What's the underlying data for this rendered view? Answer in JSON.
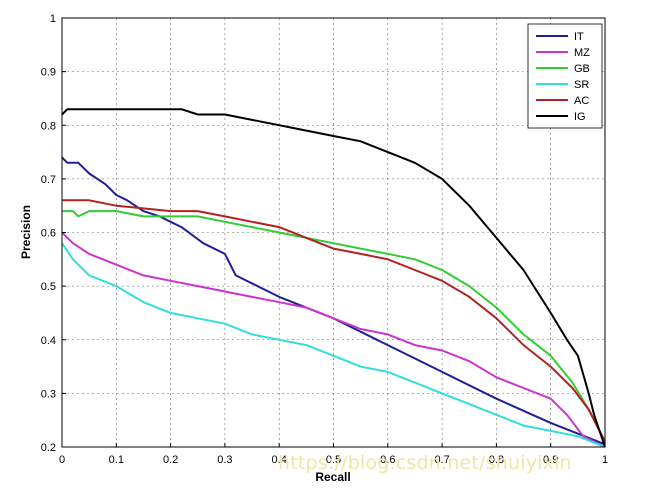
{
  "chart_data": {
    "type": "line",
    "title": "",
    "xlabel": "Recall",
    "ylabel": "Precision",
    "xlim": [
      0,
      1
    ],
    "ylim": [
      0.2,
      1
    ],
    "grid": true,
    "legend_position": "top-right",
    "x_ticks": [
      "0",
      "0.1",
      "0.2",
      "0.3",
      "0.4",
      "0.5",
      "0.6",
      "0.7",
      "0.8",
      "0.9",
      "1"
    ],
    "y_ticks": [
      "0.2",
      "0.3",
      "0.4",
      "0.5",
      "0.6",
      "0.7",
      "0.8",
      "0.9",
      "1"
    ],
    "series": [
      {
        "name": "IT",
        "color": "#1f1f99",
        "points": [
          [
            0,
            0.74
          ],
          [
            0.01,
            0.73
          ],
          [
            0.03,
            0.73
          ],
          [
            0.05,
            0.71
          ],
          [
            0.08,
            0.69
          ],
          [
            0.1,
            0.67
          ],
          [
            0.12,
            0.66
          ],
          [
            0.15,
            0.64
          ],
          [
            0.18,
            0.63
          ],
          [
            0.2,
            0.62
          ],
          [
            0.22,
            0.61
          ],
          [
            0.26,
            0.58
          ],
          [
            0.3,
            0.56
          ],
          [
            0.32,
            0.52
          ],
          [
            0.4,
            0.48
          ],
          [
            0.5,
            0.44
          ],
          [
            0.6,
            0.39
          ],
          [
            0.7,
            0.34
          ],
          [
            0.8,
            0.29
          ],
          [
            0.9,
            0.245
          ],
          [
            1,
            0.205
          ]
        ]
      },
      {
        "name": "MZ",
        "color": "#cc33cc",
        "points": [
          [
            0,
            0.6
          ],
          [
            0.02,
            0.58
          ],
          [
            0.05,
            0.56
          ],
          [
            0.1,
            0.54
          ],
          [
            0.15,
            0.52
          ],
          [
            0.2,
            0.51
          ],
          [
            0.25,
            0.5
          ],
          [
            0.3,
            0.49
          ],
          [
            0.35,
            0.48
          ],
          [
            0.4,
            0.47
          ],
          [
            0.45,
            0.46
          ],
          [
            0.5,
            0.44
          ],
          [
            0.55,
            0.42
          ],
          [
            0.6,
            0.41
          ],
          [
            0.65,
            0.39
          ],
          [
            0.7,
            0.38
          ],
          [
            0.75,
            0.36
          ],
          [
            0.8,
            0.33
          ],
          [
            0.85,
            0.31
          ],
          [
            0.9,
            0.29
          ],
          [
            0.93,
            0.26
          ],
          [
            0.96,
            0.22
          ],
          [
            1,
            0.2
          ]
        ]
      },
      {
        "name": "GB",
        "color": "#33cc33",
        "points": [
          [
            0,
            0.64
          ],
          [
            0.02,
            0.64
          ],
          [
            0.03,
            0.63
          ],
          [
            0.05,
            0.64
          ],
          [
            0.1,
            0.64
          ],
          [
            0.15,
            0.63
          ],
          [
            0.25,
            0.63
          ],
          [
            0.3,
            0.62
          ],
          [
            0.35,
            0.61
          ],
          [
            0.4,
            0.6
          ],
          [
            0.45,
            0.59
          ],
          [
            0.5,
            0.58
          ],
          [
            0.55,
            0.57
          ],
          [
            0.6,
            0.56
          ],
          [
            0.65,
            0.55
          ],
          [
            0.7,
            0.53
          ],
          [
            0.75,
            0.5
          ],
          [
            0.8,
            0.46
          ],
          [
            0.85,
            0.41
          ],
          [
            0.9,
            0.37
          ],
          [
            0.94,
            0.32
          ],
          [
            0.97,
            0.27
          ],
          [
            1,
            0.21
          ]
        ]
      },
      {
        "name": "SR",
        "color": "#33dddd",
        "points": [
          [
            0,
            0.58
          ],
          [
            0.02,
            0.55
          ],
          [
            0.05,
            0.52
          ],
          [
            0.1,
            0.5
          ],
          [
            0.15,
            0.47
          ],
          [
            0.2,
            0.45
          ],
          [
            0.25,
            0.44
          ],
          [
            0.3,
            0.43
          ],
          [
            0.35,
            0.41
          ],
          [
            0.4,
            0.4
          ],
          [
            0.45,
            0.39
          ],
          [
            0.5,
            0.37
          ],
          [
            0.55,
            0.35
          ],
          [
            0.6,
            0.34
          ],
          [
            0.65,
            0.32
          ],
          [
            0.7,
            0.3
          ],
          [
            0.75,
            0.28
          ],
          [
            0.8,
            0.26
          ],
          [
            0.85,
            0.24
          ],
          [
            0.9,
            0.23
          ],
          [
            0.95,
            0.22
          ],
          [
            1,
            0.2
          ]
        ]
      },
      {
        "name": "AC",
        "color": "#b22222",
        "points": [
          [
            0,
            0.66
          ],
          [
            0.05,
            0.66
          ],
          [
            0.1,
            0.65
          ],
          [
            0.2,
            0.64
          ],
          [
            0.25,
            0.64
          ],
          [
            0.3,
            0.63
          ],
          [
            0.35,
            0.62
          ],
          [
            0.4,
            0.61
          ],
          [
            0.45,
            0.59
          ],
          [
            0.5,
            0.57
          ],
          [
            0.55,
            0.56
          ],
          [
            0.6,
            0.55
          ],
          [
            0.65,
            0.53
          ],
          [
            0.7,
            0.51
          ],
          [
            0.75,
            0.48
          ],
          [
            0.8,
            0.44
          ],
          [
            0.85,
            0.39
          ],
          [
            0.9,
            0.35
          ],
          [
            0.94,
            0.31
          ],
          [
            0.97,
            0.27
          ],
          [
            1,
            0.21
          ]
        ]
      },
      {
        "name": "IG",
        "color": "#000000",
        "points": [
          [
            0,
            0.82
          ],
          [
            0.01,
            0.83
          ],
          [
            0.05,
            0.83
          ],
          [
            0.1,
            0.83
          ],
          [
            0.2,
            0.83
          ],
          [
            0.22,
            0.83
          ],
          [
            0.25,
            0.82
          ],
          [
            0.3,
            0.82
          ],
          [
            0.35,
            0.81
          ],
          [
            0.4,
            0.8
          ],
          [
            0.45,
            0.79
          ],
          [
            0.5,
            0.78
          ],
          [
            0.55,
            0.77
          ],
          [
            0.6,
            0.75
          ],
          [
            0.65,
            0.73
          ],
          [
            0.7,
            0.7
          ],
          [
            0.75,
            0.65
          ],
          [
            0.8,
            0.59
          ],
          [
            0.85,
            0.53
          ],
          [
            0.9,
            0.45
          ],
          [
            0.93,
            0.4
          ],
          [
            0.95,
            0.37
          ],
          [
            0.97,
            0.3
          ],
          [
            0.98,
            0.26
          ],
          [
            1,
            0.2
          ]
        ]
      }
    ]
  },
  "watermark": "https://blog.csdn.net/shuiyixin"
}
